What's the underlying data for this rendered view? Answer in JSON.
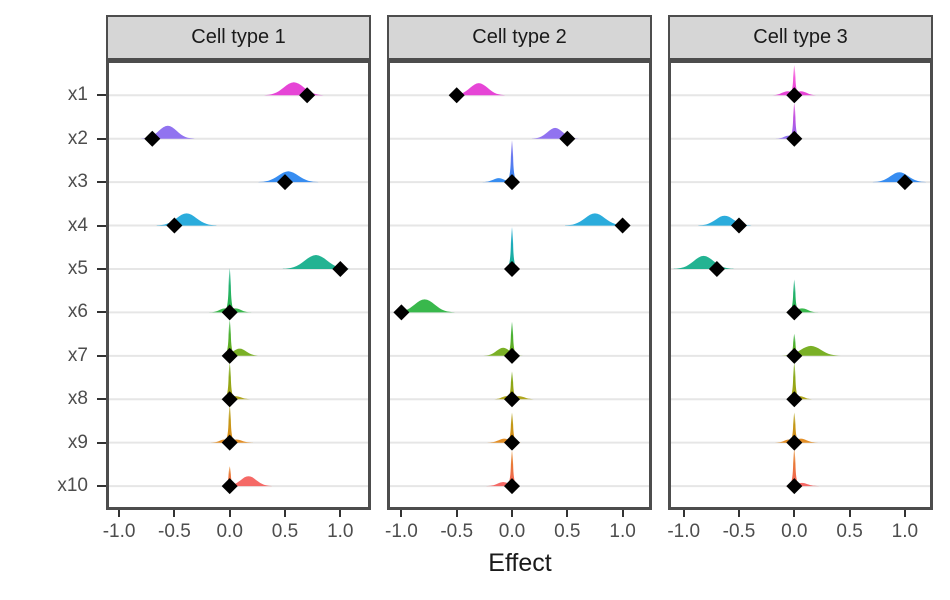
{
  "chart_data": {
    "type": "ridgeline",
    "description": "Faceted ridgeline plot of posterior effect densities per variable with black diamond point estimates",
    "facets": [
      "Cell type 1",
      "Cell type 2",
      "Cell type 3"
    ],
    "categories": [
      "x1",
      "x2",
      "x3",
      "x4",
      "x5",
      "x6",
      "x7",
      "x8",
      "x9",
      "x10"
    ],
    "xlabel": "Effect",
    "x_tick_labels": [
      "-1.0",
      "-0.5",
      "0.0",
      "0.5",
      "1.0"
    ],
    "x_tick_values": [
      -1.0,
      -0.5,
      0.0,
      0.5,
      1.0
    ],
    "xlim": [
      -1.12,
      1.25
    ],
    "grid": "horizontal-major-only",
    "legend": "none",
    "point_marker": "diamond",
    "point_color": "#000000",
    "row_colors": [
      "#E53BD4",
      "#8B6CEF",
      "#2C87F0",
      "#20A8DA",
      "#17AF8C",
      "#2EB442",
      "#73AC1A",
      "#ACA213",
      "#E2891B",
      "#F4615E"
    ],
    "color_above_top_row": "#FA74E0",
    "panels": [
      {
        "facet": "Cell type 1",
        "rows": [
          {
            "var": "x1",
            "point": 0.7,
            "spike": 0,
            "bumps": [
              {
                "center": 0.58,
                "sd": 0.09,
                "peak": 0.29
              }
            ]
          },
          {
            "var": "x2",
            "point": -0.7,
            "spike": 0,
            "bumps": [
              {
                "center": -0.56,
                "sd": 0.08,
                "peak": 0.29
              }
            ]
          },
          {
            "var": "x3",
            "point": 0.5,
            "spike": 0,
            "bumps": [
              {
                "center": 0.53,
                "sd": 0.09,
                "peak": 0.24
              }
            ]
          },
          {
            "var": "x4",
            "point": -0.5,
            "spike": 0,
            "bumps": [
              {
                "center": -0.39,
                "sd": 0.09,
                "peak": 0.27
              }
            ]
          },
          {
            "var": "x5",
            "point": 1.0,
            "spike": 0,
            "bumps": [
              {
                "center": 0.78,
                "sd": 0.1,
                "peak": 0.31
              }
            ]
          },
          {
            "var": "x6",
            "point": 0.0,
            "spike": 0.98,
            "bumps": [
              {
                "center": -0.04,
                "sd": 0.05,
                "peak": 0.09
              },
              {
                "center": 0.05,
                "sd": 0.05,
                "peak": 0.09
              }
            ]
          },
          {
            "var": "x7",
            "point": 0.0,
            "spike": 0.8,
            "bumps": [
              {
                "center": 0.09,
                "sd": 0.06,
                "peak": 0.16
              }
            ]
          },
          {
            "var": "x8",
            "point": 0.0,
            "spike": 0.82,
            "bumps": [
              {
                "center": 0.05,
                "sd": 0.05,
                "peak": 0.07
              }
            ]
          },
          {
            "var": "x9",
            "point": 0.0,
            "spike": 0.84,
            "bumps": [
              {
                "center": 0.06,
                "sd": 0.05,
                "peak": 0.07
              },
              {
                "center": -0.05,
                "sd": 0.04,
                "peak": 0.07
              }
            ]
          },
          {
            "var": "x10",
            "point": 0.0,
            "spike": 0.44,
            "bumps": [
              {
                "center": 0.17,
                "sd": 0.07,
                "peak": 0.22
              }
            ]
          }
        ]
      },
      {
        "facet": "Cell type 2",
        "rows": [
          {
            "var": "x1",
            "point": -0.5,
            "spike": 0,
            "bumps": [
              {
                "center": -0.3,
                "sd": 0.08,
                "peak": 0.27
              }
            ]
          },
          {
            "var": "x2",
            "point": 0.5,
            "spike": 0,
            "bumps": [
              {
                "center": 0.39,
                "sd": 0.07,
                "peak": 0.24
              }
            ]
          },
          {
            "var": "x3",
            "point": 0.0,
            "spike": 0.93,
            "bumps": [
              {
                "center": -0.12,
                "sd": 0.05,
                "peak": 0.09
              }
            ]
          },
          {
            "var": "x4",
            "point": 1.0,
            "spike": 0,
            "bumps": [
              {
                "center": 0.75,
                "sd": 0.09,
                "peak": 0.27
              }
            ]
          },
          {
            "var": "x5",
            "point": 0.0,
            "spike": 0.93,
            "bumps": []
          },
          {
            "var": "x6",
            "point": -1.0,
            "spike": 0,
            "bumps": [
              {
                "center": -0.79,
                "sd": 0.09,
                "peak": 0.29
              }
            ]
          },
          {
            "var": "x7",
            "point": 0.0,
            "spike": 0.76,
            "bumps": [
              {
                "center": -0.08,
                "sd": 0.06,
                "peak": 0.18
              }
            ]
          },
          {
            "var": "x8",
            "point": 0.0,
            "spike": 0.62,
            "bumps": [
              {
                "center": 0.06,
                "sd": 0.05,
                "peak": 0.07
              },
              {
                "center": -0.05,
                "sd": 0.04,
                "peak": 0.07
              }
            ]
          },
          {
            "var": "x9",
            "point": 0.0,
            "spike": 0.67,
            "bumps": [
              {
                "center": -0.07,
                "sd": 0.05,
                "peak": 0.09
              }
            ]
          },
          {
            "var": "x10",
            "point": 0.0,
            "spike": 0.8,
            "bumps": [
              {
                "center": -0.08,
                "sd": 0.05,
                "peak": 0.09
              }
            ]
          }
        ]
      },
      {
        "facet": "Cell type 3",
        "rows": [
          {
            "var": "x1",
            "point": 0.0,
            "spike": 0.67,
            "bumps": [
              {
                "center": 0.06,
                "sd": 0.05,
                "peak": 0.09
              },
              {
                "center": -0.06,
                "sd": 0.05,
                "peak": 0.09
              }
            ]
          },
          {
            "var": "x2",
            "point": 0.0,
            "spike": 0.8,
            "bumps": [
              {
                "center": -0.05,
                "sd": 0.04,
                "peak": 0.07
              }
            ]
          },
          {
            "var": "x3",
            "point": 1.0,
            "spike": 0,
            "bumps": [
              {
                "center": 0.95,
                "sd": 0.08,
                "peak": 0.22
              }
            ]
          },
          {
            "var": "x4",
            "point": -0.5,
            "spike": 0,
            "bumps": [
              {
                "center": -0.63,
                "sd": 0.08,
                "peak": 0.22
              }
            ]
          },
          {
            "var": "x5",
            "point": -0.7,
            "spike": 0,
            "bumps": [
              {
                "center": -0.82,
                "sd": 0.09,
                "peak": 0.29
              }
            ]
          },
          {
            "var": "x6",
            "point": 0.0,
            "spike": 0.73,
            "bumps": [
              {
                "center": 0.07,
                "sd": 0.05,
                "peak": 0.09
              }
            ]
          },
          {
            "var": "x7",
            "point": 0.0,
            "spike": 0.49,
            "bumps": [
              {
                "center": 0.15,
                "sd": 0.09,
                "peak": 0.22
              }
            ]
          },
          {
            "var": "x8",
            "point": 0.0,
            "spike": 0.82,
            "bumps": [
              {
                "center": 0.05,
                "sd": 0.04,
                "peak": 0.07
              }
            ]
          },
          {
            "var": "x9",
            "point": 0.0,
            "spike": 0.67,
            "bumps": [
              {
                "center": 0.06,
                "sd": 0.05,
                "peak": 0.09
              },
              {
                "center": -0.05,
                "sd": 0.04,
                "peak": 0.07
              }
            ]
          },
          {
            "var": "x10",
            "point": 0.0,
            "spike": 0.84,
            "bumps": [
              {
                "center": 0.07,
                "sd": 0.05,
                "peak": 0.07
              }
            ]
          }
        ]
      }
    ]
  },
  "style": {
    "header_bg": "#D6D6D6",
    "panel_border": "#4D4D4D",
    "gridline": "#E6E6E6",
    "axis_text": "#4D4D4D",
    "tick_mark": "#333333",
    "title_color": "#1A1A1A"
  }
}
